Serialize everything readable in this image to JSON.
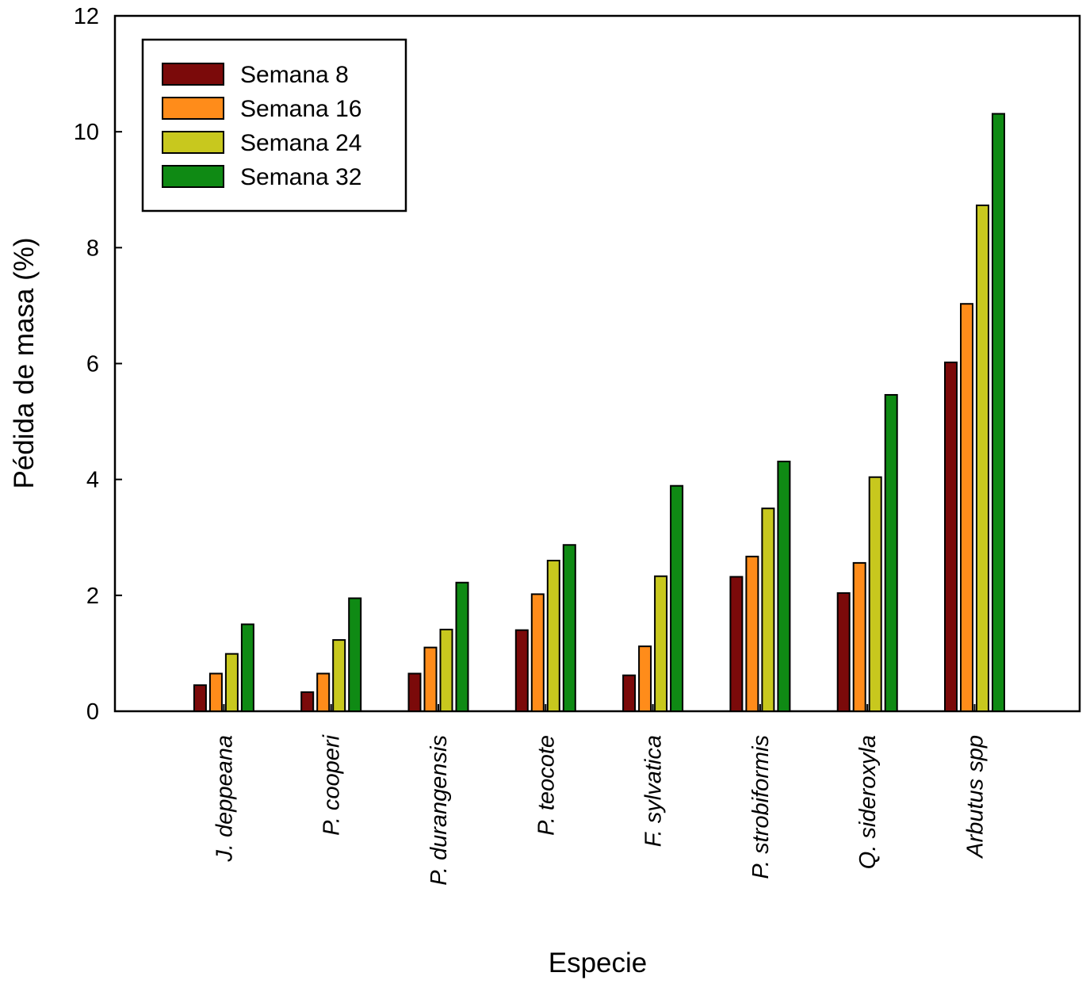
{
  "chart_data": {
    "type": "bar",
    "title": "",
    "xlabel": "Especie",
    "ylabel": "Pédida de masa (%)",
    "ylim": [
      0,
      12
    ],
    "yticks": [
      0,
      2,
      4,
      6,
      8,
      10,
      12
    ],
    "categories": [
      "J. deppeana",
      "P. cooperi",
      "P. durangensis",
      "P. teocote",
      "F. sylvatica",
      "P. strobiformis",
      "Q. sideroxyla",
      "Arbutus spp"
    ],
    "series": [
      {
        "name": "Semana 8",
        "color": "#7b0a0a",
        "values": [
          0.45,
          0.33,
          0.65,
          1.4,
          0.62,
          2.32,
          2.04,
          6.02
        ]
      },
      {
        "name": "Semana 16",
        "color": "#ff8c1a",
        "values": [
          0.65,
          0.65,
          1.1,
          2.02,
          1.12,
          2.67,
          2.56,
          7.03
        ]
      },
      {
        "name": "Semana 24",
        "color": "#c8c81e",
        "values": [
          0.99,
          1.23,
          1.41,
          2.6,
          2.33,
          3.5,
          4.04,
          8.73
        ]
      },
      {
        "name": "Semana 32",
        "color": "#0f8a14",
        "values": [
          1.5,
          1.95,
          2.22,
          2.87,
          3.89,
          4.31,
          5.46,
          10.31
        ]
      }
    ],
    "legend_position": "top-left",
    "grid": false
  }
}
